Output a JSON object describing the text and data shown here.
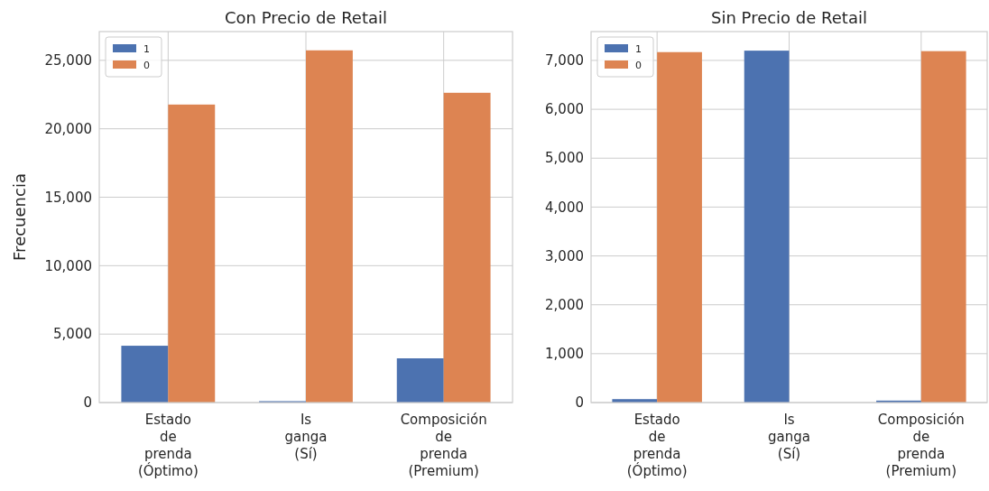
{
  "chart_data": [
    {
      "type": "bar",
      "title": "Con Precio de Retail",
      "ylabel": "Frecuencia",
      "categories": [
        "Estado\nde\nprenda\n(Óptimo)",
        "Is\nganga\n(Sí)",
        "Composición\nde\nprenda\n(Premium)"
      ],
      "series": [
        {
          "name": "1",
          "color": "#4c72b0",
          "values": [
            4150,
            100,
            3230
          ]
        },
        {
          "name": "0",
          "color": "#dd8452",
          "values": [
            21770,
            25730,
            22630
          ]
        }
      ],
      "ylim": [
        0,
        27100
      ],
      "yticks": [
        {
          "value": 0,
          "label": "0"
        },
        {
          "value": 5000,
          "label": "5,000"
        },
        {
          "value": 10000,
          "label": "10,000"
        },
        {
          "value": 15000,
          "label": "15,000"
        },
        {
          "value": 20000,
          "label": "20,000"
        },
        {
          "value": 25000,
          "label": "25,000"
        }
      ],
      "grid": true,
      "legend": "top left"
    },
    {
      "type": "bar",
      "title": "Sin Precio de Retail",
      "categories": [
        "Estado\nde\nprenda\n(Óptimo)",
        "Is\nganga\n(Sí)",
        "Composición\nde\nprenda\n(Premium)"
      ],
      "series": [
        {
          "name": "1",
          "color": "#4c72b0",
          "values": [
            70,
            7200,
            40
          ]
        },
        {
          "name": "0",
          "color": "#dd8452",
          "values": [
            7170,
            null,
            7190
          ]
        }
      ],
      "ylim": [
        0,
        7590
      ],
      "yticks": [
        {
          "value": 0,
          "label": "0"
        },
        {
          "value": 1000,
          "label": "1,000"
        },
        {
          "value": 2000,
          "label": "2,000"
        },
        {
          "value": 3000,
          "label": "3,000"
        },
        {
          "value": 4000,
          "label": "4,000"
        },
        {
          "value": 5000,
          "label": "5,000"
        },
        {
          "value": 6000,
          "label": "6,000"
        },
        {
          "value": 7000,
          "label": "7,000"
        }
      ],
      "grid": true,
      "legend": "top left"
    }
  ]
}
